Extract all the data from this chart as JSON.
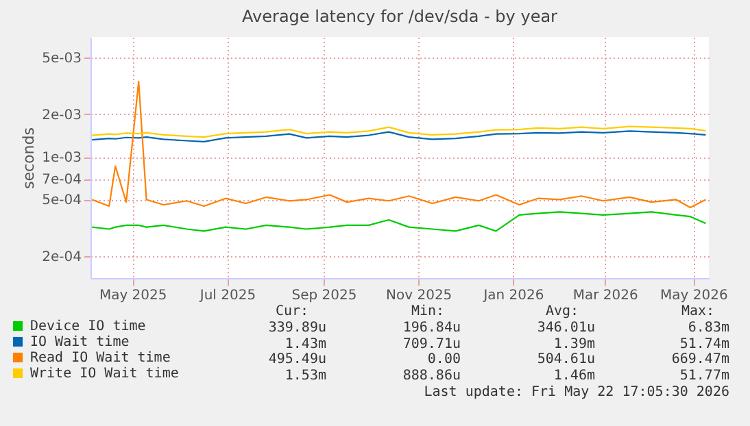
{
  "chart_data": {
    "type": "line",
    "title": "Average latency for /dev/sda - by year",
    "ylabel": "seconds",
    "log": "y",
    "grid": true,
    "legend": "bottom",
    "xlim": [
      "2025-04-19",
      "2026-05-22"
    ],
    "xticks": [
      {
        "value": "2025-05-16",
        "label": "May 2025"
      },
      {
        "value": "2025-07-16",
        "label": "Jul 2025"
      },
      {
        "value": "2025-09-16",
        "label": "Sep 2025"
      },
      {
        "value": "2025-11-16",
        "label": "Nov 2025"
      },
      {
        "value": "2026-01-16",
        "label": "Jan 2026"
      },
      {
        "value": "2026-03-16",
        "label": "Mar 2026"
      },
      {
        "value": "2026-05-12",
        "label": "May 2026"
      }
    ],
    "ylim": [
      0.00014,
      0.007
    ],
    "yticks": [
      {
        "value": 0.005,
        "label": "5e-03"
      },
      {
        "value": 0.002,
        "label": "2e-03"
      },
      {
        "value": 0.001,
        "label": "1e-03"
      },
      {
        "value": 0.0007,
        "label": "7e-04"
      },
      {
        "value": 0.0005,
        "label": "5e-04"
      },
      {
        "value": 0.0002,
        "label": "2e-04"
      }
    ],
    "x": [
      "2025-04-20",
      "2025-05-01",
      "2025-05-05",
      "2025-05-12",
      "2025-05-20",
      "2025-05-25",
      "2025-06-05",
      "2025-06-20",
      "2025-07-01",
      "2025-07-15",
      "2025-07-28",
      "2025-08-10",
      "2025-08-25",
      "2025-09-05",
      "2025-09-20",
      "2025-10-01",
      "2025-10-15",
      "2025-10-28",
      "2025-11-10",
      "2025-11-25",
      "2025-12-10",
      "2025-12-25",
      "2026-01-05",
      "2026-01-20",
      "2026-02-01",
      "2026-02-15",
      "2026-03-01",
      "2026-03-15",
      "2026-04-01",
      "2026-04-15",
      "2026-05-01",
      "2026-05-10",
      "2026-05-20"
    ],
    "series": [
      {
        "name": "Device IO time",
        "color": "#00cc00",
        "values": [
          0.00032,
          0.00031,
          0.00032,
          0.00033,
          0.00033,
          0.00032,
          0.00033,
          0.00031,
          0.0003,
          0.00032,
          0.00031,
          0.00033,
          0.00032,
          0.00031,
          0.00032,
          0.00033,
          0.00033,
          0.00036,
          0.00032,
          0.00031,
          0.0003,
          0.00033,
          0.0003,
          0.00039,
          0.0004,
          0.00041,
          0.0004,
          0.00039,
          0.0004,
          0.00041,
          0.00039,
          0.00038,
          0.00034
        ]
      },
      {
        "name": "IO Wait time",
        "color": "#0066b3",
        "values": [
          0.00132,
          0.00135,
          0.00134,
          0.00137,
          0.00136,
          0.00138,
          0.00133,
          0.0013,
          0.00128,
          0.00136,
          0.00138,
          0.0014,
          0.00145,
          0.00136,
          0.0014,
          0.00138,
          0.00142,
          0.0015,
          0.00138,
          0.00133,
          0.00135,
          0.0014,
          0.00145,
          0.00146,
          0.00148,
          0.00147,
          0.0015,
          0.00148,
          0.00152,
          0.0015,
          0.00148,
          0.00146,
          0.00143
        ]
      },
      {
        "name": "Read IO Wait time",
        "color": "#ff8000",
        "values": [
          0.0005,
          0.00045,
          0.00086,
          0.00048,
          0.0034,
          0.0005,
          0.00046,
          0.00049,
          0.00045,
          0.00051,
          0.00047,
          0.00052,
          0.00049,
          0.0005,
          0.00054,
          0.00048,
          0.00051,
          0.00049,
          0.00053,
          0.00047,
          0.00052,
          0.00049,
          0.00054,
          0.00046,
          0.00051,
          0.0005,
          0.00053,
          0.00049,
          0.00052,
          0.00048,
          0.0005,
          0.00044,
          0.0005
        ]
      },
      {
        "name": "Write IO Wait time",
        "color": "#ffcc00",
        "values": [
          0.00142,
          0.00145,
          0.00144,
          0.00147,
          0.00146,
          0.00148,
          0.00143,
          0.0014,
          0.00138,
          0.00146,
          0.00148,
          0.0015,
          0.00156,
          0.00146,
          0.0015,
          0.00148,
          0.00152,
          0.00162,
          0.00148,
          0.00143,
          0.00145,
          0.0015,
          0.00155,
          0.00156,
          0.0016,
          0.00158,
          0.00162,
          0.00158,
          0.00164,
          0.00162,
          0.0016,
          0.00158,
          0.00153
        ]
      }
    ],
    "annotations": [
      "Cur:",
      "Min:",
      "Avg:",
      "Max:",
      "339.89u",
      "196.84u",
      "346.01u",
      "6.83m",
      "1.43m",
      "709.71u",
      "1.39m",
      "51.74m",
      "495.49u",
      "0.00",
      "504.61u",
      "669.47m",
      "1.53m",
      "888.86u",
      "1.46m",
      "51.77m",
      "Last update: Fri May 22 17:05:30 2026"
    ]
  }
}
